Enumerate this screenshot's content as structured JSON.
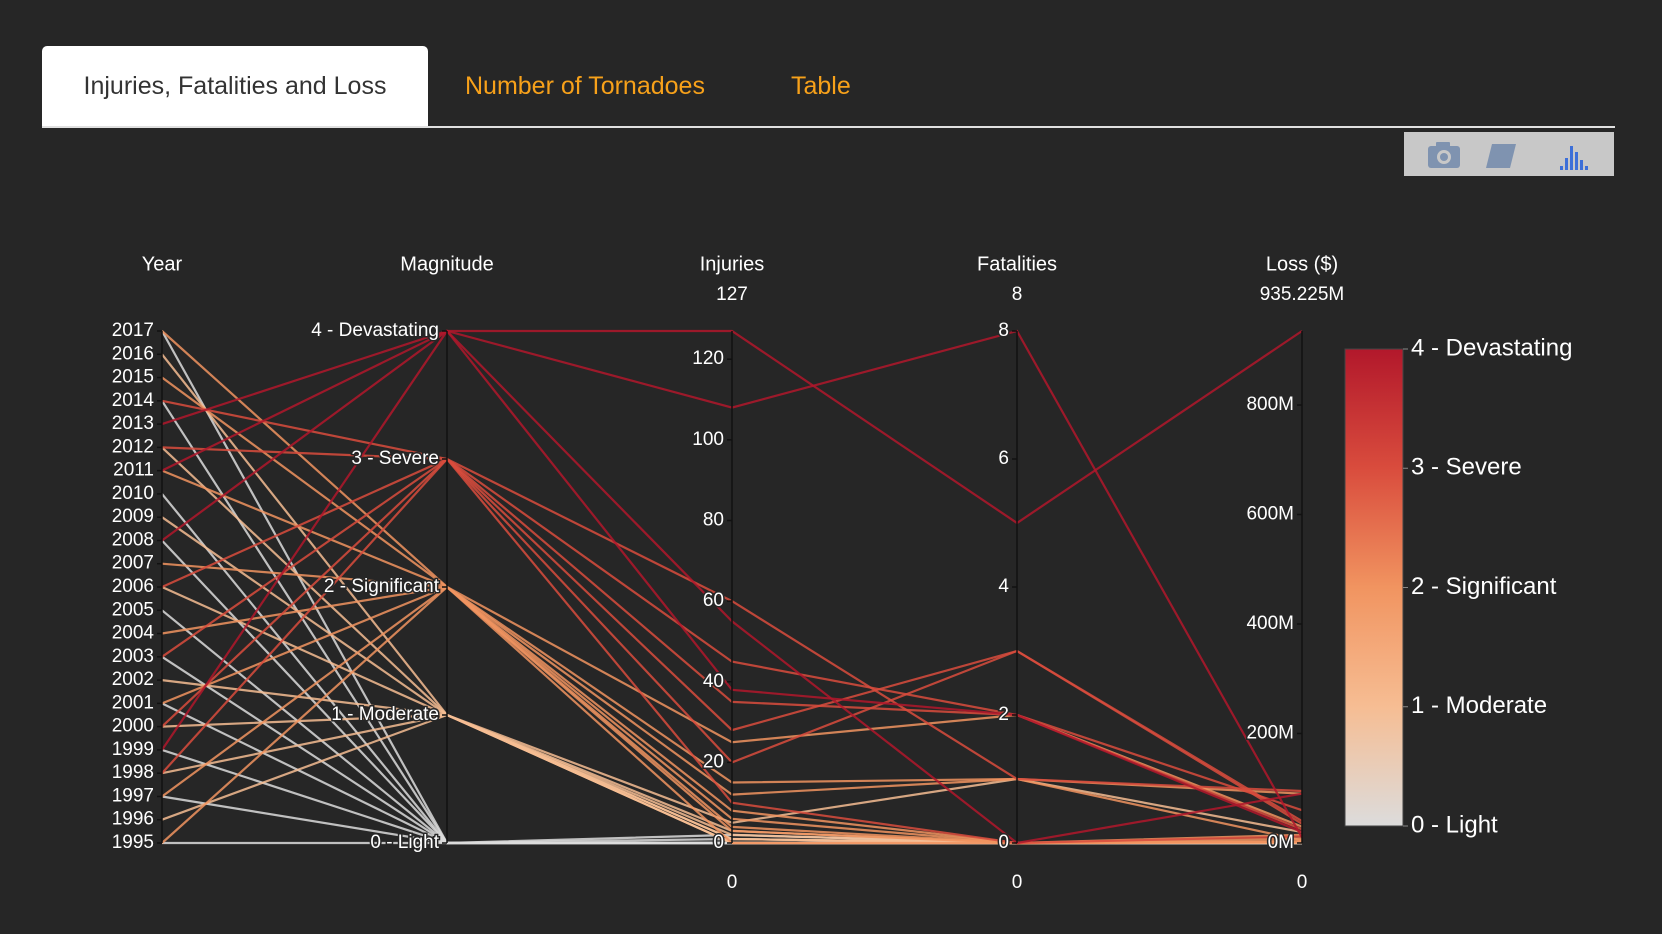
{
  "tabs": [
    "Injuries, Fatalities and Loss",
    "Number of Tornadoes",
    "Table"
  ],
  "chart_data": {
    "type": "parcoords",
    "colorscale": [
      [
        0,
        "#dcdcdc"
      ],
      [
        0.25,
        "#f6bd93"
      ],
      [
        0.5,
        "#f19460"
      ],
      [
        0.75,
        "#d94c3d"
      ],
      [
        1,
        "#b2182b"
      ]
    ],
    "color_by": 1,
    "dimensions": [
      {
        "label": "Year",
        "range": [
          1995,
          2017
        ],
        "ticks": [
          1995,
          1996,
          1997,
          1998,
          1999,
          2000,
          2001,
          2002,
          2003,
          2004,
          2005,
          2006,
          2007,
          2008,
          2009,
          2010,
          2011,
          2012,
          2013,
          2014,
          2015,
          2016,
          2017
        ],
        "values": [
          1995,
          1997,
          1999,
          2001,
          2003,
          2005,
          2008,
          2010,
          2014,
          2017,
          1996,
          1998,
          2000,
          2002,
          2006,
          2009,
          2012,
          2016,
          1995,
          1997,
          2001,
          2004,
          2007,
          2011,
          2015,
          2017,
          1998,
          2000,
          2003,
          2006,
          2012,
          2014,
          2013,
          2011,
          1999,
          2008
        ]
      },
      {
        "label": "Magnitude",
        "range": [
          0,
          4
        ],
        "ticks": [
          {
            "value": 0,
            "label": "0 - Light"
          },
          {
            "value": 1,
            "label": "1 - Moderate"
          },
          {
            "value": 2,
            "label": "2 - Significant"
          },
          {
            "value": 3,
            "label": "3 - Severe"
          },
          {
            "value": 4,
            "label": "4 - Devastating"
          }
        ],
        "values": [
          0,
          0,
          0,
          0,
          0,
          0,
          0,
          0,
          0,
          0,
          1,
          1,
          1,
          1,
          1,
          1,
          1,
          1,
          2,
          2,
          2,
          2,
          2,
          2,
          2,
          2,
          3,
          3,
          3,
          3,
          3,
          3,
          4,
          4,
          4,
          4
        ]
      },
      {
        "label": "Injuries",
        "range": [
          0,
          127
        ],
        "ticks": [
          0,
          20,
          40,
          60,
          80,
          100,
          120
        ],
        "values": [
          0,
          0,
          0,
          1,
          0,
          0,
          2,
          0,
          0,
          0,
          0,
          2,
          1,
          0,
          3,
          0,
          5,
          1,
          4,
          12,
          0,
          8,
          25,
          3,
          15,
          6,
          35,
          20,
          60,
          10,
          45,
          28,
          127,
          108,
          55,
          38
        ]
      },
      {
        "label": "Fatalities",
        "range": [
          0,
          8
        ],
        "ticks": [
          0,
          2,
          4,
          6,
          8
        ],
        "values": [
          0,
          0,
          0,
          0,
          0,
          0,
          0,
          0,
          0,
          0,
          0,
          0,
          0,
          0,
          0,
          0,
          1,
          0,
          0,
          1,
          0,
          0,
          2,
          0,
          1,
          0,
          2,
          3,
          1,
          0,
          2,
          3,
          5,
          8,
          0,
          2
        ]
      },
      {
        "label": "Loss ($)",
        "range": [
          0,
          {
            "value": 935225000,
            "label": "935.225M"
          }
        ],
        "ticks": [
          {
            "value": 0,
            "label": "0M"
          },
          {
            "value": 200000000,
            "label": "200M"
          },
          {
            "value": 400000000,
            "label": "400M"
          },
          {
            "value": 600000000,
            "label": "600M"
          },
          {
            "value": 800000000,
            "label": "800M"
          }
        ],
        "values": [
          0,
          10000,
          5000,
          20000,
          0,
          50000,
          10000,
          0,
          25000,
          5000,
          50000,
          200000,
          100000,
          500000,
          1500000,
          300000,
          20000000,
          800000,
          2000000,
          5000000,
          8000000,
          1200000,
          30000000,
          4000000,
          90000000,
          15000000,
          25000000,
          40000000,
          95000000,
          12000000,
          60000000,
          35000000,
          935225000,
          10000000,
          90000000,
          20000000
        ]
      }
    ]
  }
}
